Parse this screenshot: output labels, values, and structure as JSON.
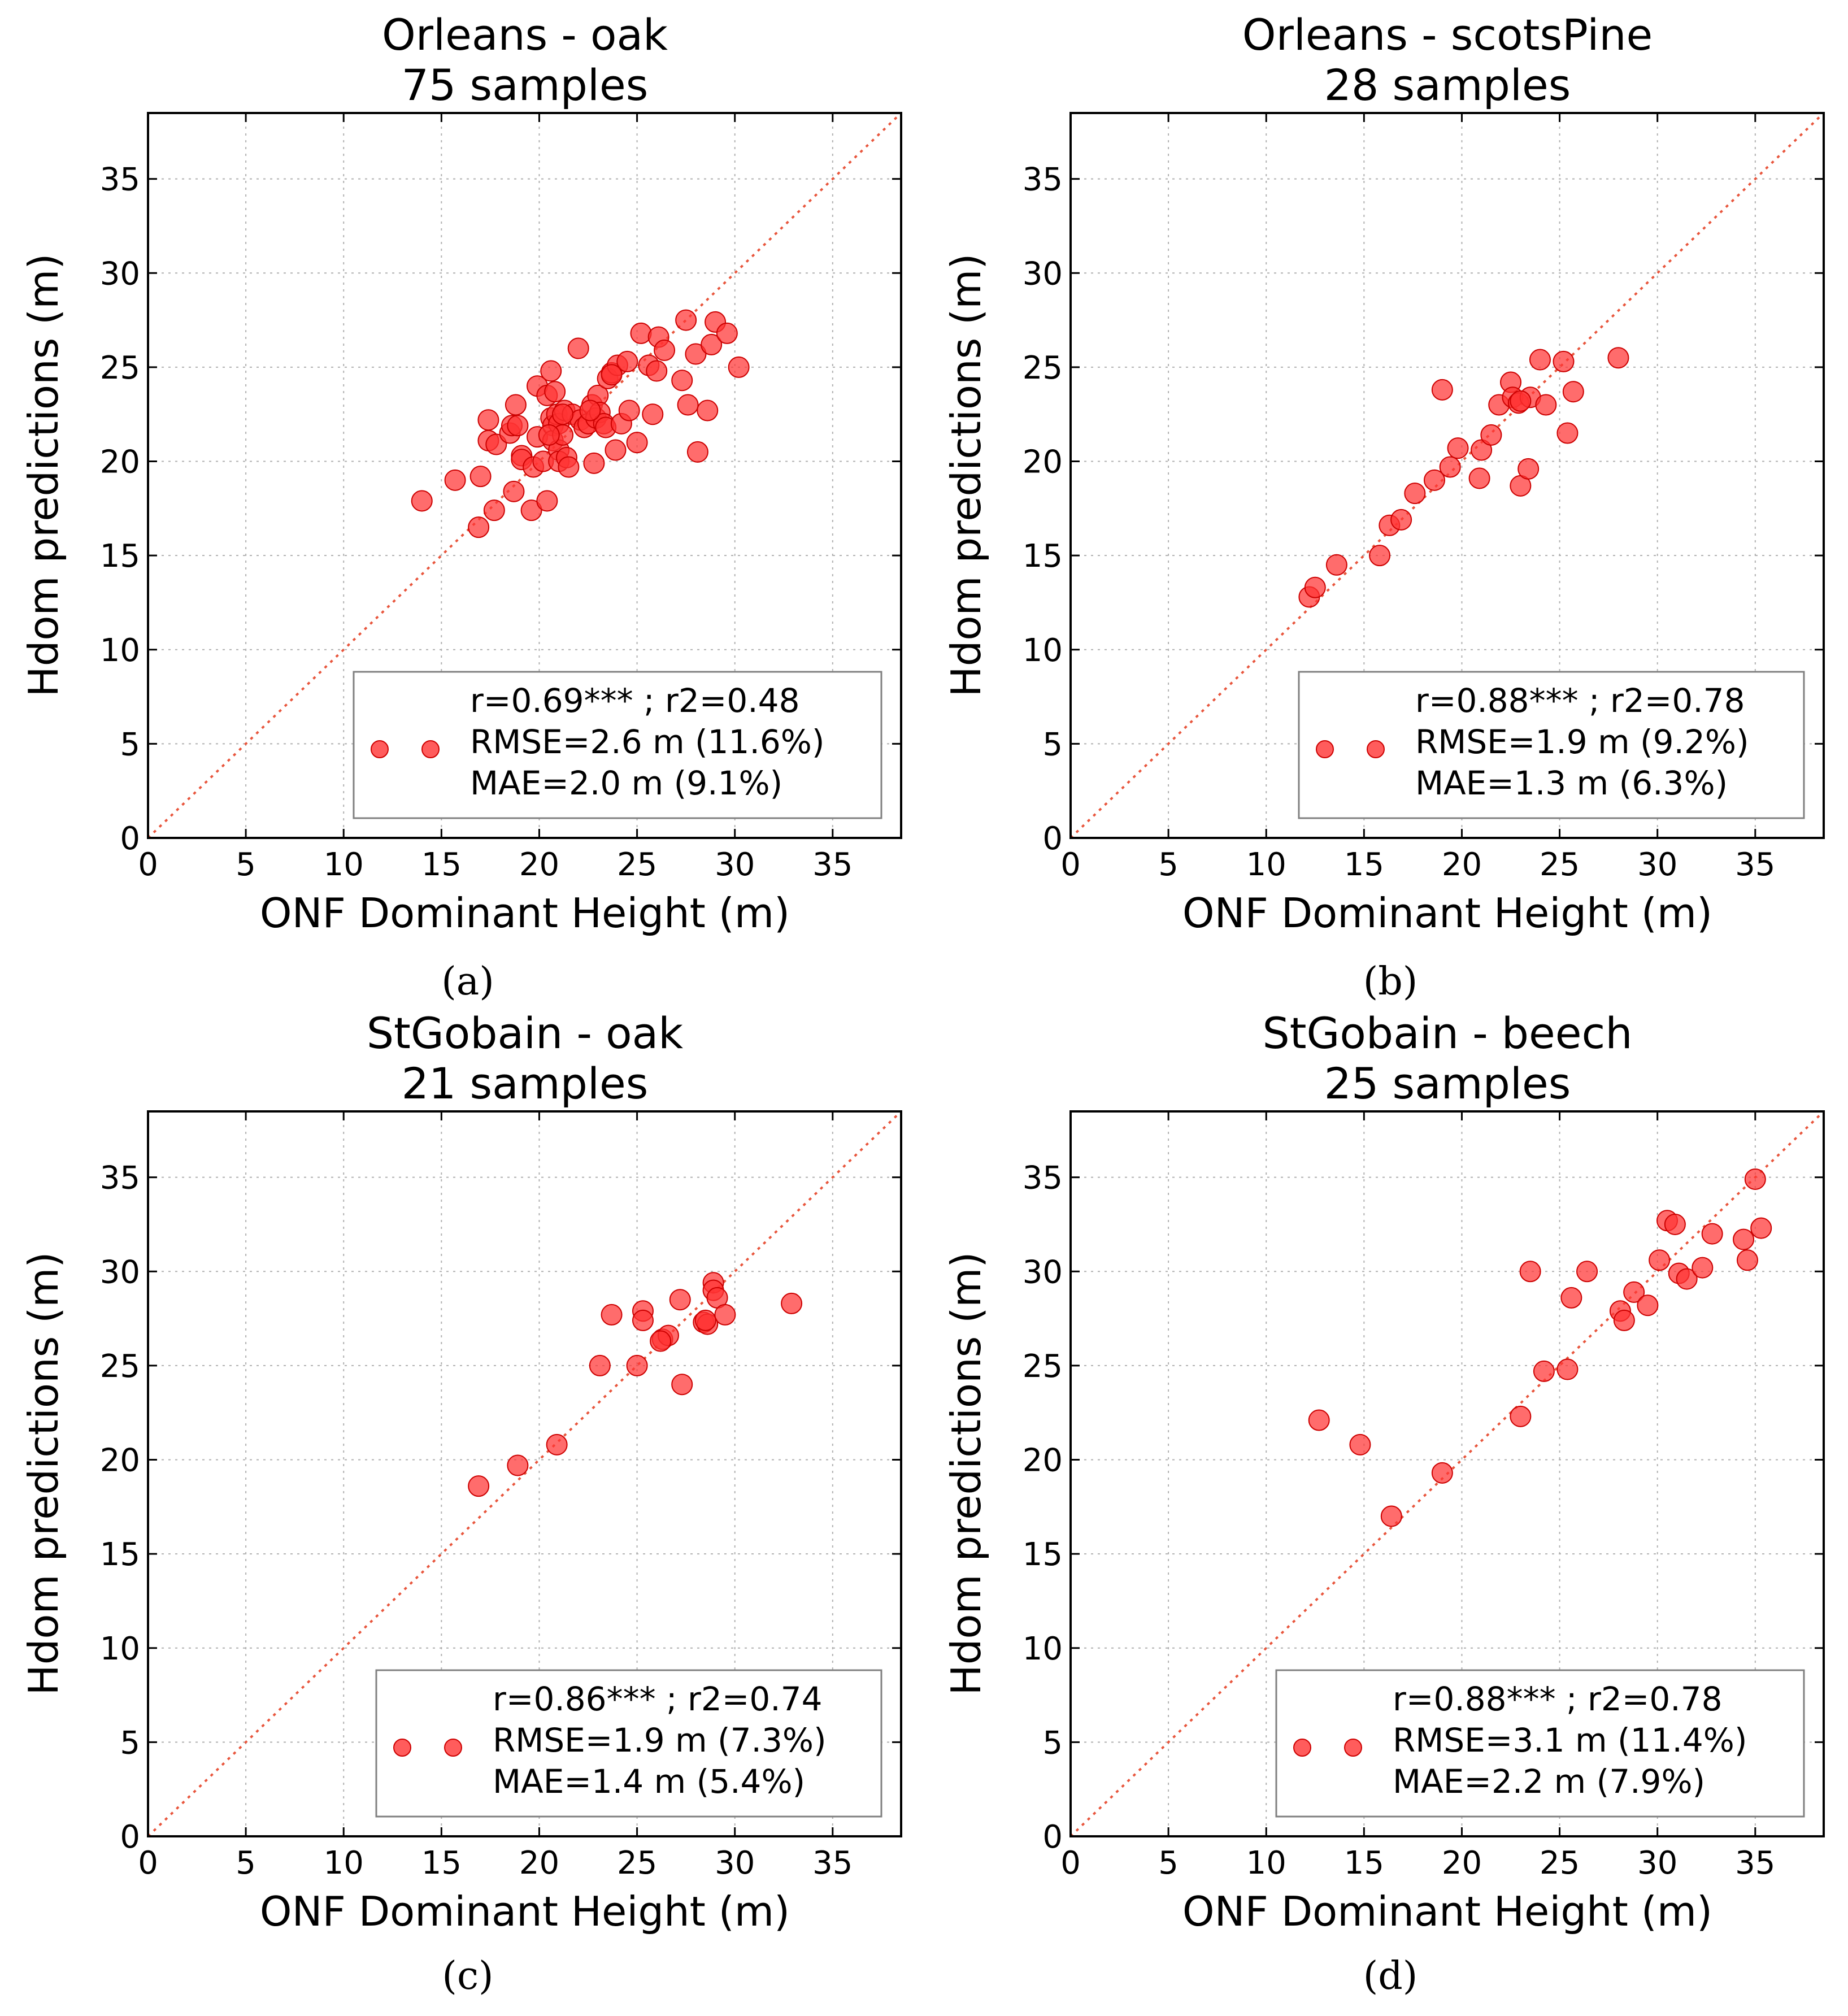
{
  "colors": {
    "marker_fill": "#ff3333",
    "marker_stroke": "#cc0000",
    "diagonal": "#e8553c",
    "grid": "#b0b0b0",
    "frame": "#000000",
    "legend_frame": "#808080"
  },
  "chart_data": [
    {
      "type": "scatter",
      "panel_label": "(a)",
      "title": "Orleans - oak",
      "subtitle": "75 samples",
      "xlabel": "ONF Dominant Height (m)",
      "ylabel": "Hdom predictions (m)",
      "xlim": [
        0,
        38.5
      ],
      "ylim": [
        0,
        38.5
      ],
      "xticks": [
        0,
        5,
        10,
        15,
        20,
        25,
        30,
        35
      ],
      "yticks": [
        0,
        5,
        10,
        15,
        20,
        25,
        30,
        35
      ],
      "grid": true,
      "reference_line": "y = x",
      "legend_position": "bottom-right",
      "legend": [
        "r=0.69*** ; r2=0.48",
        "RMSE=2.6 m (11.6%)",
        "MAE=2.0 m (9.1%)"
      ],
      "points": [
        [
          14.0,
          17.9
        ],
        [
          15.7,
          19.0
        ],
        [
          16.9,
          16.5
        ],
        [
          17.0,
          19.2
        ],
        [
          17.4,
          21.1
        ],
        [
          17.4,
          22.2
        ],
        [
          17.7,
          17.4
        ],
        [
          17.8,
          20.9
        ],
        [
          18.5,
          21.5
        ],
        [
          18.6,
          21.9
        ],
        [
          18.7,
          18.4
        ],
        [
          18.8,
          23.0
        ],
        [
          18.9,
          21.9
        ],
        [
          19.1,
          20.3
        ],
        [
          19.1,
          20.1
        ],
        [
          19.6,
          17.4
        ],
        [
          19.7,
          19.7
        ],
        [
          19.9,
          21.3
        ],
        [
          19.9,
          24.0
        ],
        [
          20.2,
          20.0
        ],
        [
          20.4,
          17.9
        ],
        [
          20.4,
          23.5
        ],
        [
          20.6,
          24.8
        ],
        [
          20.6,
          22.3
        ],
        [
          20.7,
          21.9
        ],
        [
          20.7,
          21.1
        ],
        [
          20.8,
          23.7
        ],
        [
          20.9,
          22.5
        ],
        [
          21.0,
          22.0
        ],
        [
          21.0,
          20.6
        ],
        [
          21.0,
          20.0
        ],
        [
          21.2,
          21.4
        ],
        [
          21.3,
          22.7
        ],
        [
          21.4,
          20.2
        ],
        [
          21.5,
          19.7
        ],
        [
          21.7,
          22.5
        ],
        [
          22.0,
          26.0
        ],
        [
          22.1,
          22.2
        ],
        [
          22.3,
          21.8
        ],
        [
          22.5,
          22.0
        ],
        [
          22.7,
          23.0
        ],
        [
          22.8,
          19.9
        ],
        [
          22.9,
          22.3
        ],
        [
          23.0,
          23.5
        ],
        [
          23.1,
          22.6
        ],
        [
          23.3,
          22.0
        ],
        [
          23.4,
          21.8
        ],
        [
          23.5,
          24.4
        ],
        [
          23.7,
          24.7
        ],
        [
          23.9,
          20.6
        ],
        [
          24.0,
          25.1
        ],
        [
          24.2,
          22.0
        ],
        [
          24.5,
          25.3
        ],
        [
          24.6,
          22.7
        ],
        [
          25.0,
          21.0
        ],
        [
          25.2,
          26.8
        ],
        [
          25.6,
          25.1
        ],
        [
          25.8,
          22.5
        ],
        [
          26.0,
          24.8
        ],
        [
          26.1,
          26.6
        ],
        [
          26.4,
          25.9
        ],
        [
          27.3,
          24.3
        ],
        [
          27.5,
          27.5
        ],
        [
          27.6,
          23.0
        ],
        [
          28.0,
          25.7
        ],
        [
          28.1,
          20.5
        ],
        [
          28.6,
          22.7
        ],
        [
          28.8,
          26.2
        ],
        [
          29.0,
          27.4
        ],
        [
          29.6,
          26.8
        ],
        [
          30.2,
          25.0
        ],
        [
          21.2,
          22.5
        ],
        [
          20.5,
          21.4
        ],
        [
          22.6,
          22.7
        ],
        [
          23.7,
          24.6
        ]
      ]
    },
    {
      "type": "scatter",
      "panel_label": "(b)",
      "title": "Orleans - scotsPine",
      "subtitle": "28 samples",
      "xlabel": "ONF Dominant Height (m)",
      "ylabel": "Hdom predictions (m)",
      "xlim": [
        0,
        38.5
      ],
      "ylim": [
        0,
        38.5
      ],
      "xticks": [
        0,
        5,
        10,
        15,
        20,
        25,
        30,
        35
      ],
      "yticks": [
        0,
        5,
        10,
        15,
        20,
        25,
        30,
        35
      ],
      "grid": true,
      "reference_line": "y = x",
      "legend_position": "bottom-right",
      "legend": [
        "r=0.88*** ; r2=0.78",
        "RMSE=1.9 m (9.2%)",
        "MAE=1.3 m (6.3%)"
      ],
      "points": [
        [
          12.2,
          12.8
        ],
        [
          12.5,
          13.3
        ],
        [
          13.6,
          14.5
        ],
        [
          15.8,
          15.0
        ],
        [
          16.3,
          16.6
        ],
        [
          16.9,
          16.9
        ],
        [
          17.6,
          18.3
        ],
        [
          18.6,
          19.0
        ],
        [
          19.0,
          23.8
        ],
        [
          19.4,
          19.7
        ],
        [
          19.8,
          20.7
        ],
        [
          20.9,
          19.1
        ],
        [
          21.0,
          20.6
        ],
        [
          21.5,
          21.4
        ],
        [
          21.9,
          23.0
        ],
        [
          22.5,
          24.2
        ],
        [
          22.6,
          23.4
        ],
        [
          22.9,
          23.1
        ],
        [
          23.0,
          18.7
        ],
        [
          23.4,
          19.6
        ],
        [
          23.5,
          23.4
        ],
        [
          24.0,
          25.4
        ],
        [
          24.3,
          23.0
        ],
        [
          25.2,
          25.3
        ],
        [
          25.4,
          21.5
        ],
        [
          25.7,
          23.7
        ],
        [
          28.0,
          25.5
        ],
        [
          23.0,
          23.2
        ]
      ]
    },
    {
      "type": "scatter",
      "panel_label": "(c)",
      "title": "StGobain - oak",
      "subtitle": "21 samples",
      "xlabel": "ONF Dominant Height (m)",
      "ylabel": "Hdom predictions (m)",
      "xlim": [
        0,
        38.5
      ],
      "ylim": [
        0,
        38.5
      ],
      "xticks": [
        0,
        5,
        10,
        15,
        20,
        25,
        30,
        35
      ],
      "yticks": [
        0,
        5,
        10,
        15,
        20,
        25,
        30,
        35
      ],
      "grid": true,
      "reference_line": "y = x",
      "legend_position": "bottom-right",
      "legend": [
        "r=0.86*** ; r2=0.74",
        "RMSE=1.9 m (7.3%)",
        "MAE=1.4 m (5.4%)"
      ],
      "points": [
        [
          16.9,
          18.6
        ],
        [
          18.9,
          19.7
        ],
        [
          20.9,
          20.8
        ],
        [
          23.1,
          25.0
        ],
        [
          23.7,
          27.7
        ],
        [
          25.0,
          25.0
        ],
        [
          25.3,
          27.9
        ],
        [
          25.3,
          27.4
        ],
        [
          26.3,
          26.4
        ],
        [
          26.6,
          26.6
        ],
        [
          27.2,
          28.5
        ],
        [
          27.3,
          24.0
        ],
        [
          28.4,
          27.3
        ],
        [
          28.6,
          27.2
        ],
        [
          28.9,
          29.4
        ],
        [
          28.9,
          29.0
        ],
        [
          29.1,
          28.6
        ],
        [
          29.5,
          27.7
        ],
        [
          32.9,
          28.3
        ],
        [
          28.5,
          27.4
        ],
        [
          26.2,
          26.3
        ]
      ]
    },
    {
      "type": "scatter",
      "panel_label": "(d)",
      "title": "StGobain - beech",
      "subtitle": "25 samples",
      "xlabel": "ONF Dominant Height (m)",
      "ylabel": "Hdom predictions (m)",
      "xlim": [
        0,
        38.5
      ],
      "ylim": [
        0,
        38.5
      ],
      "xticks": [
        0,
        5,
        10,
        15,
        20,
        25,
        30,
        35
      ],
      "yticks": [
        0,
        5,
        10,
        15,
        20,
        25,
        30,
        35
      ],
      "grid": true,
      "reference_line": "y = x",
      "legend_position": "bottom-right",
      "legend": [
        "r=0.88*** ; r2=0.78",
        "RMSE=3.1 m (11.4%)",
        "MAE=2.2 m (7.9%)"
      ],
      "points": [
        [
          12.7,
          22.1
        ],
        [
          14.8,
          20.8
        ],
        [
          16.4,
          17.0
        ],
        [
          19.0,
          19.3
        ],
        [
          23.0,
          22.3
        ],
        [
          23.5,
          30.0
        ],
        [
          24.2,
          24.7
        ],
        [
          25.4,
          24.8
        ],
        [
          25.6,
          28.6
        ],
        [
          26.4,
          30.0
        ],
        [
          28.1,
          27.9
        ],
        [
          28.3,
          27.4
        ],
        [
          28.8,
          28.9
        ],
        [
          29.5,
          28.2
        ],
        [
          30.1,
          30.6
        ],
        [
          30.5,
          32.7
        ],
        [
          30.9,
          32.5
        ],
        [
          31.1,
          29.9
        ],
        [
          31.5,
          29.6
        ],
        [
          32.3,
          30.2
        ],
        [
          32.8,
          32.0
        ],
        [
          34.4,
          31.7
        ],
        [
          34.6,
          30.6
        ],
        [
          35.0,
          34.9
        ],
        [
          35.3,
          32.3
        ]
      ]
    }
  ]
}
